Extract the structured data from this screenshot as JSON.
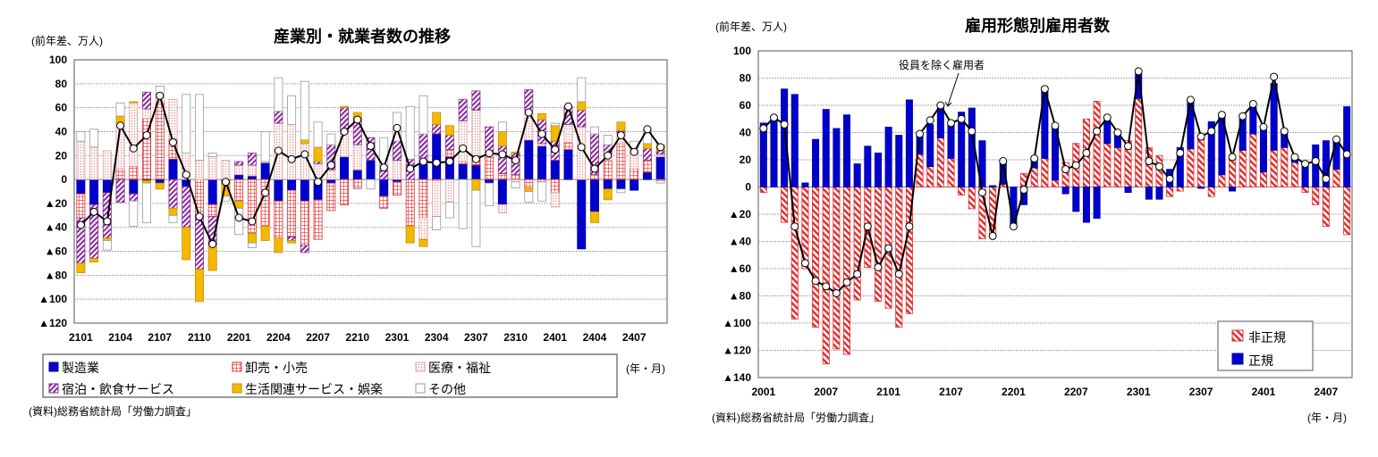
{
  "chart_data": [
    {
      "type": "bar",
      "stacked": true,
      "title": "産業別・就業者数の推移",
      "unit_label": "(前年差、万人)",
      "xlabel": "(年・月)",
      "source": "(資料)総務省統計局「労働力調査」",
      "ylim": [
        -120,
        100
      ],
      "yticks": [
        100,
        80,
        60,
        40,
        20,
        0,
        -20,
        -40,
        -60,
        -80,
        -100,
        -120
      ],
      "ytick_labels": [
        "100",
        "80",
        "60",
        "40",
        "20",
        "0",
        "▲20",
        "▲40",
        "▲60",
        "▲80",
        "▲100",
        "▲120"
      ],
      "xtick_labels": [
        "2101",
        "2104",
        "2107",
        "2110",
        "2201",
        "2204",
        "2207",
        "2210",
        "2301",
        "2304",
        "2307",
        "2310",
        "2401",
        "2404",
        "2407"
      ],
      "grid": true,
      "legend_position": "bottom",
      "categories": [
        "2101",
        "2102",
        "2103",
        "2104",
        "2105",
        "2106",
        "2107",
        "2108",
        "2109",
        "2110",
        "2111",
        "2112",
        "2201",
        "2202",
        "2203",
        "2204",
        "2205",
        "2206",
        "2207",
        "2208",
        "2209",
        "2210",
        "2211",
        "2212",
        "2301",
        "2302",
        "2303",
        "2304",
        "2305",
        "2306",
        "2307",
        "2308",
        "2309",
        "2310",
        "2311",
        "2312",
        "2401",
        "2402",
        "2403",
        "2404",
        "2405",
        "2406",
        "2407",
        "2408",
        "2409"
      ],
      "series": [
        {
          "name": "製造業",
          "color": "#0000cc",
          "values": [
            -12,
            -21,
            -11,
            0,
            -12,
            -1,
            -3,
            17,
            -6,
            0,
            -21,
            -2,
            4,
            3,
            14,
            -18,
            -9,
            -18,
            -17,
            -3,
            19,
            8,
            16,
            -14,
            -2,
            0,
            13,
            38,
            19,
            13,
            12,
            -3,
            -21,
            0,
            33,
            28,
            16,
            25,
            -58,
            -27,
            -8,
            -8,
            -9,
            6,
            19
          ]
        },
        {
          "name": "卸売・小売",
          "color": "#e03030",
          "values": [
            -20,
            0,
            0,
            9,
            11,
            51,
            65,
            17,
            0,
            -30,
            -10,
            -2,
            -18,
            -45,
            -39,
            -31,
            -39,
            -37,
            -33,
            -23,
            -21,
            -7,
            0,
            -10,
            -11,
            -39,
            -32,
            -1,
            6,
            2,
            8,
            19,
            5,
            4,
            -7,
            -2,
            -11,
            6,
            0,
            4,
            16,
            30,
            9,
            10,
            -1
          ]
        },
        {
          "name": "医療・福祉",
          "color": "#e89090",
          "values": [
            32,
            27,
            24,
            38,
            53,
            8,
            3,
            33,
            22,
            16,
            19,
            16,
            8,
            9,
            1,
            47,
            46,
            30,
            13,
            8,
            21,
            21,
            0,
            0,
            16,
            0,
            -18,
            -30,
            -19,
            34,
            38,
            3,
            -7,
            -2,
            25,
            2,
            -12,
            15,
            44,
            0,
            5,
            9,
            13,
            0,
            2
          ]
        },
        {
          "name": "宿泊・飲食サービス",
          "color": "#8a2a9a",
          "values": [
            -38,
            -45,
            -38,
            -19,
            -6,
            14,
            0,
            -24,
            -34,
            -45,
            -24,
            0,
            3,
            10,
            0,
            10,
            -3,
            -6,
            2,
            21,
            20,
            22,
            19,
            8,
            16,
            17,
            25,
            8,
            12,
            18,
            16,
            22,
            23,
            18,
            17,
            20,
            16,
            15,
            14,
            34,
            8,
            2,
            0,
            10,
            3
          ]
        },
        {
          "name": "生活関連サービス・娯楽",
          "color": "#f5b800",
          "values": [
            -8,
            -3,
            -2,
            6,
            1,
            -2,
            -5,
            -6,
            -27,
            -27,
            -21,
            -10,
            -6,
            -8,
            -12,
            -12,
            -2,
            3,
            12,
            0,
            1,
            5,
            0,
            0,
            0,
            -14,
            -6,
            10,
            8,
            0,
            -9,
            0,
            12,
            1,
            -3,
            5,
            13,
            0,
            7,
            -9,
            -9,
            7,
            0,
            4,
            5
          ]
        },
        {
          "name": "その他",
          "color": "#ffffff",
          "values": [
            8,
            15,
            -8,
            11,
            -21,
            -33,
            10,
            -6,
            49,
            55,
            3,
            -4,
            -22,
            -4,
            25,
            28,
            24,
            49,
            21,
            9,
            0,
            -1,
            -8,
            27,
            24,
            44,
            32,
            -11,
            -13,
            -41,
            -47,
            -19,
            8,
            -5,
            -9,
            -16,
            2,
            0,
            20,
            6,
            8,
            -3,
            10,
            12,
            -2
          ]
        }
      ],
      "total": {
        "values": [
          -38,
          -27,
          -35,
          45,
          26,
          37,
          70,
          31,
          4,
          -31,
          -54,
          -2,
          -32,
          -35,
          -11,
          24,
          17,
          21,
          -2,
          12,
          40,
          50,
          28,
          10,
          43,
          9,
          15,
          14,
          15,
          26,
          17,
          22,
          21,
          16,
          56,
          38,
          25,
          61,
          27,
          9,
          20,
          37,
          23,
          42,
          27
        ]
      }
    },
    {
      "type": "bar",
      "stacked": true,
      "title": "雇用形態別雇用者数",
      "unit_label": "(前年差、万人)",
      "xlabel": "(年・月)",
      "source": "(資料)総務省統計局「労働力調査」",
      "annotation": "役員を除く雇用者",
      "ylim": [
        -140,
        100
      ],
      "yticks": [
        100,
        80,
        60,
        40,
        20,
        0,
        -20,
        -40,
        -60,
        -80,
        -100,
        -120,
        -140
      ],
      "ytick_labels": [
        "100",
        "80",
        "60",
        "40",
        "20",
        "0",
        "▲20",
        "▲40",
        "▲60",
        "▲80",
        "▲100",
        "▲120",
        "▲140"
      ],
      "xtick_labels": [
        "2001",
        "2007",
        "2101",
        "2107",
        "2201",
        "2207",
        "2301",
        "2307",
        "2401",
        "2407"
      ],
      "grid": true,
      "legend_position": "bottom-right",
      "x_start": "2001",
      "x_end": "2409",
      "series": [
        {
          "name": "非正規",
          "color": "#e03030",
          "values": [
            -4,
            0,
            -26,
            -97,
            -60,
            -103,
            -130,
            -119,
            -123,
            -83,
            -59,
            -84,
            -89,
            -103,
            -93,
            24,
            15,
            36,
            21,
            -6,
            -16,
            -38,
            -36,
            2,
            0,
            10,
            14,
            21,
            5,
            18,
            32,
            50,
            63,
            32,
            29,
            34,
            65,
            29,
            23,
            -7,
            -3,
            28,
            37,
            -7,
            9,
            22,
            27,
            39,
            11,
            27,
            29,
            18,
            -4,
            -13,
            -29,
            13,
            -35
          ]
        },
        {
          "name": "正規",
          "color": "#0000cc",
          "values": [
            47,
            49,
            72,
            68,
            3,
            35,
            57,
            43,
            53,
            17,
            30,
            25,
            44,
            38,
            64,
            15,
            31,
            23,
            25,
            55,
            58,
            34,
            1,
            17,
            -28,
            -13,
            7,
            51,
            40,
            -5,
            -18,
            -26,
            -23,
            17,
            10,
            -4,
            18,
            -9,
            -9,
            13,
            29,
            36,
            -1,
            48,
            44,
            -3,
            23,
            20,
            31,
            49,
            11,
            2,
            15,
            31,
            34,
            22,
            59
          ]
        }
      ],
      "total": {
        "name": "役員を除く雇用者",
        "values": [
          43,
          51,
          46,
          -29,
          -56,
          -69,
          -73,
          -78,
          -70,
          -64,
          -29,
          -59,
          -45,
          -64,
          -29,
          39,
          49,
          60,
          47,
          50,
          41,
          -4,
          -36,
          19,
          -29,
          -2,
          21,
          72,
          45,
          13,
          16,
          25,
          41,
          51,
          40,
          30,
          85,
          19,
          15,
          6,
          25,
          64,
          37,
          41,
          53,
          22,
          52,
          61,
          44,
          81,
          41,
          22,
          17,
          19,
          6,
          35,
          24
        ]
      }
    }
  ]
}
